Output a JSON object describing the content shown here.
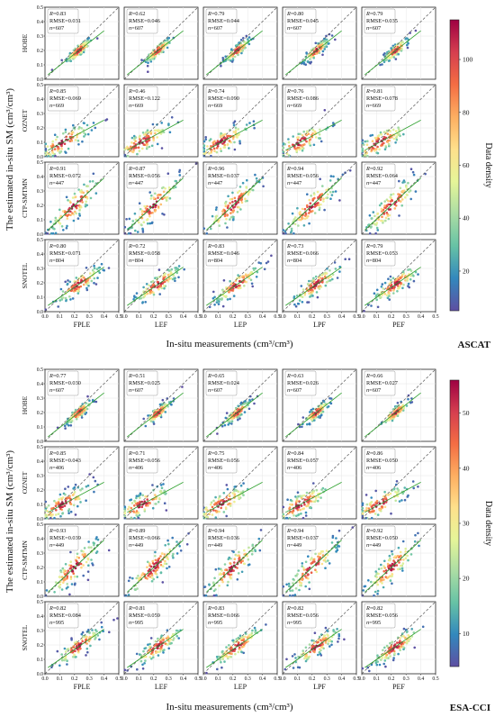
{
  "figure": {
    "ylabel": "The estimated in-situ SM (cm³/cm³)",
    "xlabel": "In-situ measurements (cm³/cm³)",
    "cbar_label": "Data density",
    "models": [
      "FPLE",
      "LEF",
      "LEP",
      "LPF",
      "PEF"
    ],
    "networks": [
      "HOBE",
      "OZNET",
      "CTP-SMTMN",
      "SNOTEL"
    ],
    "colors": {
      "ramp": [
        "#5e4fa2",
        "#3288bd",
        "#66c2a5",
        "#abdda4",
        "#e6f598",
        "#fee08b",
        "#fdae61",
        "#f46d43",
        "#d53e4f",
        "#9e0142"
      ],
      "one_to_one": "#555555",
      "fit_line": "#2ca02c",
      "stats_border": "#999999"
    }
  },
  "chart_data": [
    {
      "type": "scatter",
      "product": "ASCAT",
      "xlim": [
        0,
        0.5
      ],
      "ylim": [
        0,
        0.5
      ],
      "x_ticks": [
        "0.0",
        "0.1",
        "0.2",
        "0.3",
        "0.4",
        "0.5"
      ],
      "y_ticks": [
        "0.0",
        "0.1",
        "0.2",
        "0.3",
        "0.4",
        "0.5"
      ],
      "colorbar_ticks": [
        20,
        40,
        60,
        80,
        100
      ],
      "colorbar_range": [
        5,
        115
      ],
      "reference_line": "1:1",
      "grid": true,
      "panels": [
        {
          "network": "HOBE",
          "model": "FPLE",
          "R": "0.83",
          "RMSE": "0.031",
          "n": "607"
        },
        {
          "network": "HOBE",
          "model": "LEF",
          "R": "0.62",
          "RMSE": "0.046",
          "n": "607"
        },
        {
          "network": "HOBE",
          "model": "LEP",
          "R": "0.79",
          "RMSE": "0.044",
          "n": "607"
        },
        {
          "network": "HOBE",
          "model": "LPF",
          "R": "0.80",
          "RMSE": "0.045",
          "n": "607"
        },
        {
          "network": "HOBE",
          "model": "PEF",
          "R": "0.79",
          "RMSE": "0.035",
          "n": "607"
        },
        {
          "network": "OZNET",
          "model": "FPLE",
          "R": "0.85",
          "RMSE": "0.069",
          "n": "669"
        },
        {
          "network": "OZNET",
          "model": "LEF",
          "R": "0.46",
          "RMSE": "0.122",
          "n": "669"
        },
        {
          "network": "OZNET",
          "model": "LEP",
          "R": "0.74",
          "RMSE": "0.090",
          "n": "669"
        },
        {
          "network": "OZNET",
          "model": "LPF",
          "R": "0.76",
          "RMSE": "0.086",
          "n": "669"
        },
        {
          "network": "OZNET",
          "model": "PEF",
          "R": "0.81",
          "RMSE": "0.078",
          "n": "669"
        },
        {
          "network": "CTP-SMTMN",
          "model": "FPLE",
          "R": "0.91",
          "RMSE": "0.072",
          "n": "447"
        },
        {
          "network": "CTP-SMTMN",
          "model": "LEF",
          "R": "0.87",
          "RMSE": "0.056",
          "n": "447"
        },
        {
          "network": "CTP-SMTMN",
          "model": "LEP",
          "R": "0.96",
          "RMSE": "0.037",
          "n": "447"
        },
        {
          "network": "CTP-SMTMN",
          "model": "LPF",
          "R": "0.94",
          "RMSE": "0.056",
          "n": "447"
        },
        {
          "network": "CTP-SMTMN",
          "model": "PEF",
          "R": "0.92",
          "RMSE": "0.064",
          "n": "447"
        },
        {
          "network": "SNOTEL",
          "model": "FPLE",
          "R": "0.80",
          "RMSE": "0.071",
          "n": "804"
        },
        {
          "network": "SNOTEL",
          "model": "LEF",
          "R": "0.72",
          "RMSE": "0.058",
          "n": "804"
        },
        {
          "network": "SNOTEL",
          "model": "LEP",
          "R": "0.83",
          "RMSE": "0.046",
          "n": "804"
        },
        {
          "network": "SNOTEL",
          "model": "LPF",
          "R": "0.73",
          "RMSE": "0.066",
          "n": "804"
        },
        {
          "network": "SNOTEL",
          "model": "PEF",
          "R": "0.79",
          "RMSE": "0.053",
          "n": "804"
        }
      ]
    },
    {
      "type": "scatter",
      "product": "ESA-CCI",
      "xlim": [
        0,
        0.5
      ],
      "ylim": [
        0,
        0.5
      ],
      "x_ticks": [
        "0.0",
        "0.1",
        "0.2",
        "0.3",
        "0.4",
        "0.5"
      ],
      "y_ticks": [
        "0.0",
        "0.1",
        "0.2",
        "0.3",
        "0.4",
        "0.5"
      ],
      "colorbar_ticks": [
        10,
        20,
        30,
        40,
        50
      ],
      "colorbar_range": [
        4,
        56
      ],
      "reference_line": "1:1",
      "grid": true,
      "panels": [
        {
          "network": "HOBE",
          "model": "FPLE",
          "R": "0.77",
          "RMSE": "0.030",
          "n": "607"
        },
        {
          "network": "HOBE",
          "model": "LEF",
          "R": "0.51",
          "RMSE": "0.025",
          "n": "607"
        },
        {
          "network": "HOBE",
          "model": "LEP",
          "R": "0.65",
          "RMSE": "0.024",
          "n": "607"
        },
        {
          "network": "HOBE",
          "model": "LPF",
          "R": "0.63",
          "RMSE": "0.026",
          "n": "607"
        },
        {
          "network": "HOBE",
          "model": "PEF",
          "R": "0.66",
          "RMSE": "0.027",
          "n": "607"
        },
        {
          "network": "OZNET",
          "model": "FPLE",
          "R": "0.85",
          "RMSE": "0.043",
          "n": "406"
        },
        {
          "network": "OZNET",
          "model": "LEF",
          "R": "0.71",
          "RMSE": "0.056",
          "n": "406"
        },
        {
          "network": "OZNET",
          "model": "LEP",
          "R": "0.75",
          "RMSE": "0.056",
          "n": "406"
        },
        {
          "network": "OZNET",
          "model": "LPF",
          "R": "0.84",
          "RMSE": "0.057",
          "n": "406"
        },
        {
          "network": "OZNET",
          "model": "PEF",
          "R": "0.86",
          "RMSE": "0.050",
          "n": "406"
        },
        {
          "network": "CTP-SMTMN",
          "model": "FPLE",
          "R": "0.93",
          "RMSE": "0.039",
          "n": "449"
        },
        {
          "network": "CTP-SMTMN",
          "model": "LEF",
          "R": "0.89",
          "RMSE": "0.066",
          "n": "449"
        },
        {
          "network": "CTP-SMTMN",
          "model": "LEP",
          "R": "0.94",
          "RMSE": "0.036",
          "n": "449"
        },
        {
          "network": "CTP-SMTMN",
          "model": "LPF",
          "R": "0.94",
          "RMSE": "0.037",
          "n": "449"
        },
        {
          "network": "CTP-SMTMN",
          "model": "PEF",
          "R": "0.92",
          "RMSE": "0.050",
          "n": "449"
        },
        {
          "network": "SNOTEL",
          "model": "FPLE",
          "R": "0.82",
          "RMSE": "0.084",
          "n": "995"
        },
        {
          "network": "SNOTEL",
          "model": "LEF",
          "R": "0.81",
          "RMSE": "0.059",
          "n": "995"
        },
        {
          "network": "SNOTEL",
          "model": "LEP",
          "R": "0.83",
          "RMSE": "0.066",
          "n": "995"
        },
        {
          "network": "SNOTEL",
          "model": "LPF",
          "R": "0.82",
          "RMSE": "0.056",
          "n": "995"
        },
        {
          "network": "SNOTEL",
          "model": "PEF",
          "R": "0.82",
          "RMSE": "0.056",
          "n": "995"
        }
      ]
    }
  ]
}
